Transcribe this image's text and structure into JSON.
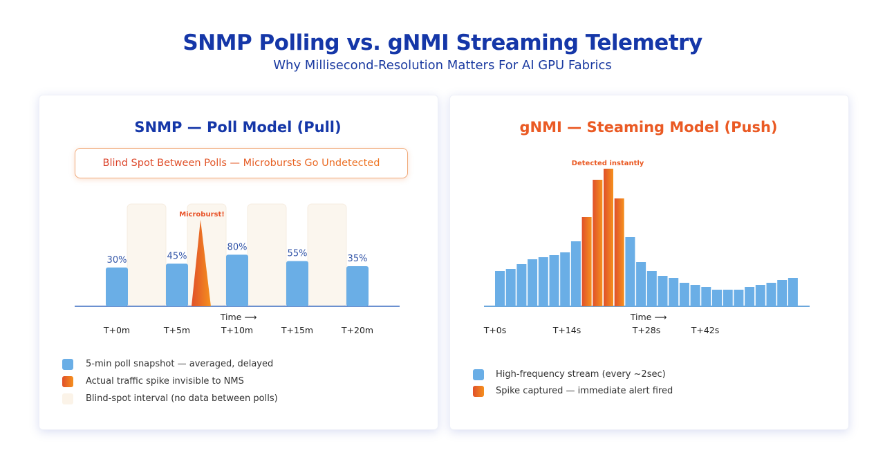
{
  "header": {
    "title": "SNMP Polling vs. gNMI Streaming Telemetry",
    "subtitle": "Why Millisecond-Resolution Matters For AI GPU Fabrics"
  },
  "colors": {
    "blue": "#6aaee6",
    "orange": "#f07a20",
    "red_orange": "#e0502a",
    "navy": "#1537a8",
    "blind": "#fbf6ee"
  },
  "chart_data": [
    {
      "type": "bar",
      "title": "SNMP — Poll Model (Pull)",
      "banner": "Blind Spot Between Polls — Microbursts Go Undetected",
      "categories": [
        "T+0m",
        "T+5m",
        "T+10m",
        "T+15m",
        "T+20m"
      ],
      "values": [
        30,
        45,
        80,
        55,
        35
      ],
      "data_labels": [
        "30%",
        "45%",
        "80%",
        "55%",
        "35%"
      ],
      "xlabel": "Time ⟶",
      "annotation": "Microburst!",
      "legend": [
        "5-min poll snapshot — averaged, delayed",
        "Actual traffic spike invisible to NMS",
        "Blind-spot interval (no data between polls)"
      ]
    },
    {
      "type": "bar",
      "title": "gNMI — Steaming Model (Push)",
      "tick_labels": [
        "T+0s",
        "T+14s",
        "T+28s",
        "T+42s"
      ],
      "values": [
        51,
        54,
        61,
        68,
        71,
        74,
        78,
        94,
        129,
        183,
        199,
        156,
        100,
        64,
        51,
        44,
        41,
        34,
        31,
        28,
        24,
        24,
        24,
        28,
        31,
        34,
        38,
        41
      ],
      "highlighted": [
        8,
        9,
        10,
        11
      ],
      "xlabel": "Time ⟶",
      "annotation": "Detected instantly",
      "legend": [
        "High-frequency stream (every ~2sec)",
        "Spike captured — immediate alert fired"
      ]
    }
  ]
}
